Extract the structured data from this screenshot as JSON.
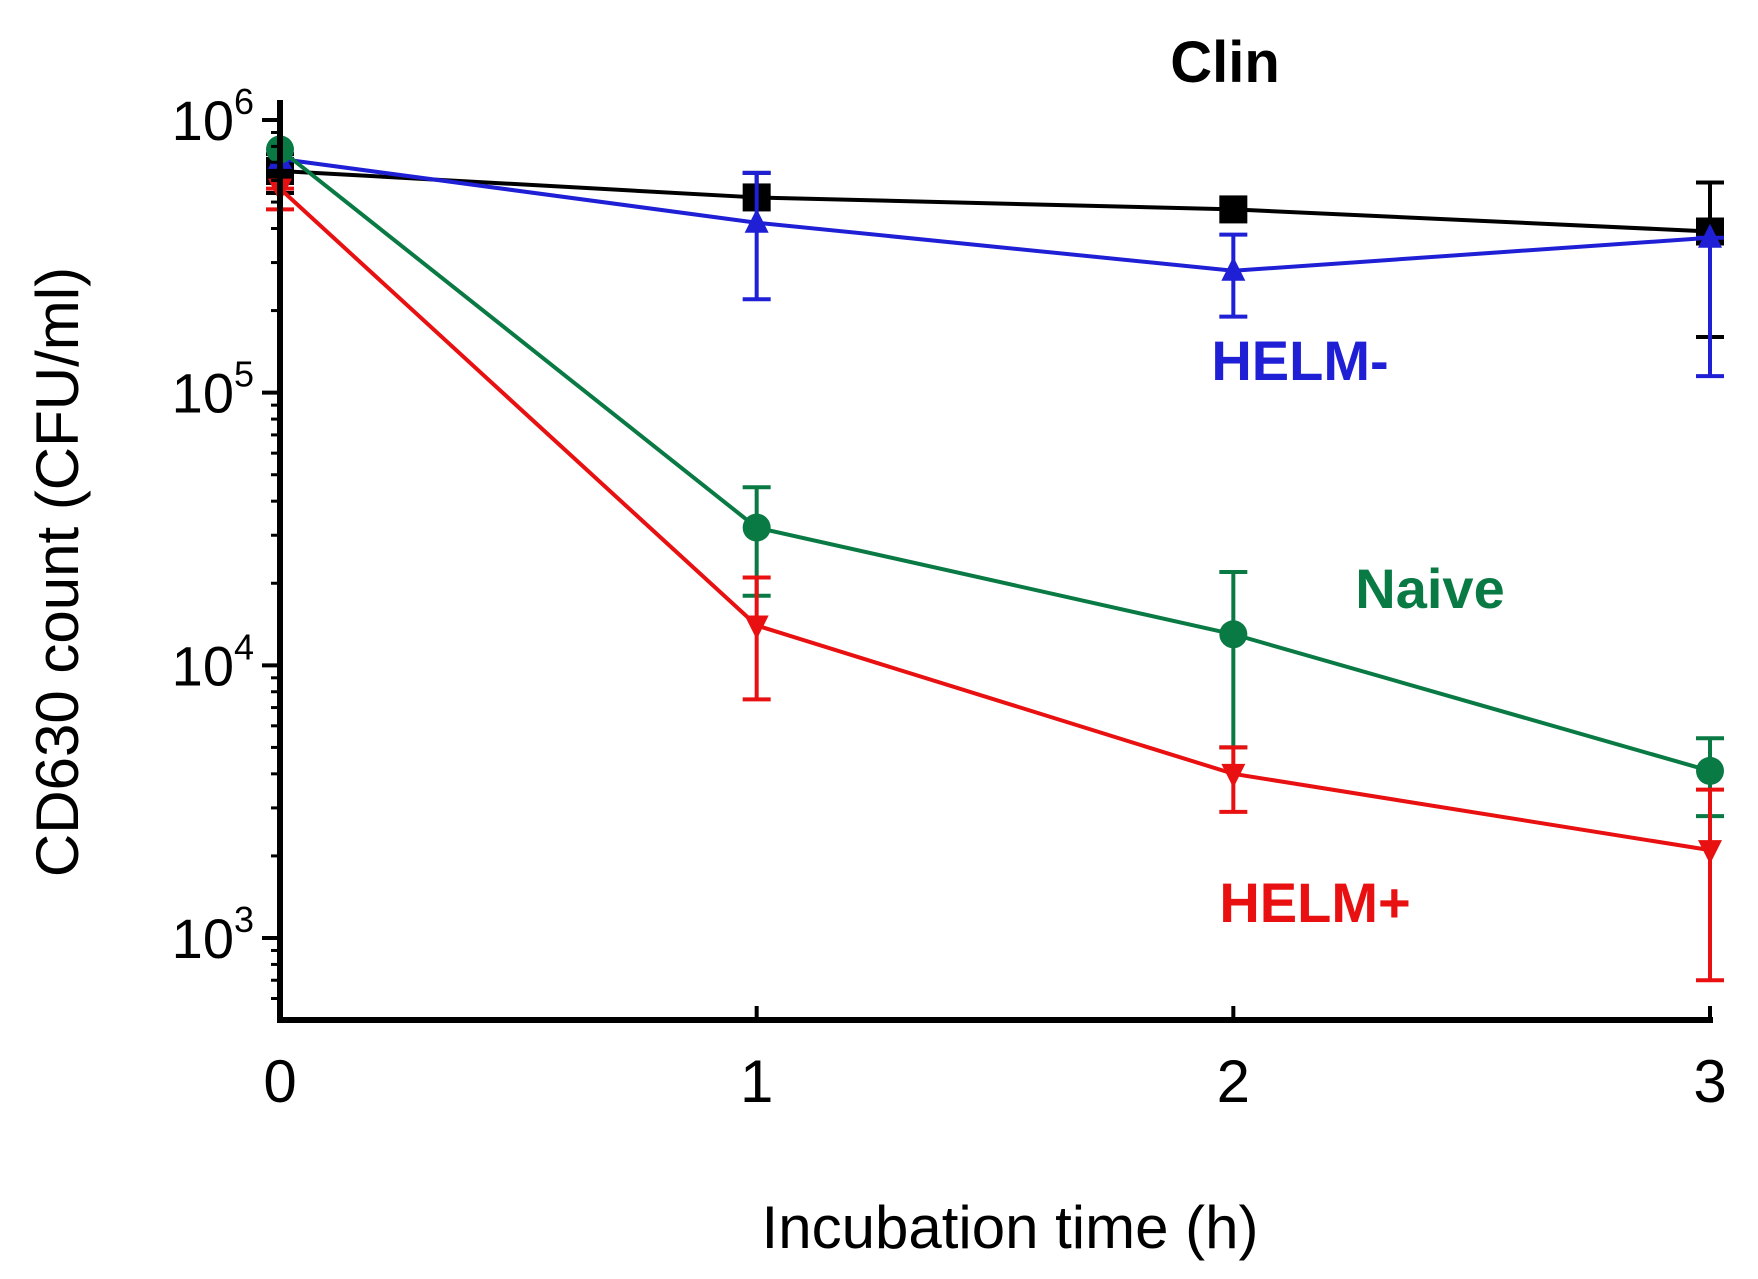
{
  "chart_data": {
    "type": "line",
    "title": "Clin",
    "xlabel": "Incubation time (h)",
    "ylabel": "CD630 count (CFU/ml)",
    "yscale": "log",
    "ylim": [
      500,
      1000000
    ],
    "xlim": [
      0,
      3
    ],
    "x": [
      0,
      1,
      2,
      3
    ],
    "x_tick_labels": [
      "0",
      "1",
      "2",
      "3"
    ],
    "y_ticks": [
      {
        "value": 1000,
        "base": "10",
        "exp": "3"
      },
      {
        "value": 10000,
        "base": "10",
        "exp": "4"
      },
      {
        "value": 100000,
        "base": "10",
        "exp": "5"
      },
      {
        "value": 1000000,
        "base": "10",
        "exp": "6"
      }
    ],
    "grid": false,
    "series": [
      {
        "name": "Clin",
        "color": "#000000",
        "marker": "square",
        "values": [
          650000,
          520000,
          470000,
          390000
        ],
        "err_low": [
          540000,
          520000,
          470000,
          160000
        ],
        "err_high": [
          750000,
          640000,
          470000,
          590000
        ],
        "label": ""
      },
      {
        "name": "HELM-",
        "color": "#1f1fd6",
        "marker": "triangle-up",
        "values": [
          720000,
          420000,
          280000,
          370000
        ],
        "err_low": [
          720000,
          220000,
          190000,
          115000
        ],
        "err_high": [
          720000,
          640000,
          380000,
          370000
        ],
        "label": "HELM-"
      },
      {
        "name": "Naive",
        "color": "#0a7a45",
        "marker": "circle",
        "values": [
          780000,
          32000,
          13000,
          4100
        ],
        "err_low": [
          780000,
          18000,
          5000,
          2800
        ],
        "err_high": [
          780000,
          45000,
          22000,
          5400
        ],
        "label": "Naive"
      },
      {
        "name": "HELM+",
        "color": "#e81010",
        "marker": "triangle-down",
        "values": [
          560000,
          14000,
          4000,
          2100
        ],
        "err_low": [
          470000,
          7500,
          2900,
          700
        ],
        "err_high": [
          560000,
          21000,
          5000,
          3500
        ],
        "label": "HELM+"
      }
    ]
  }
}
